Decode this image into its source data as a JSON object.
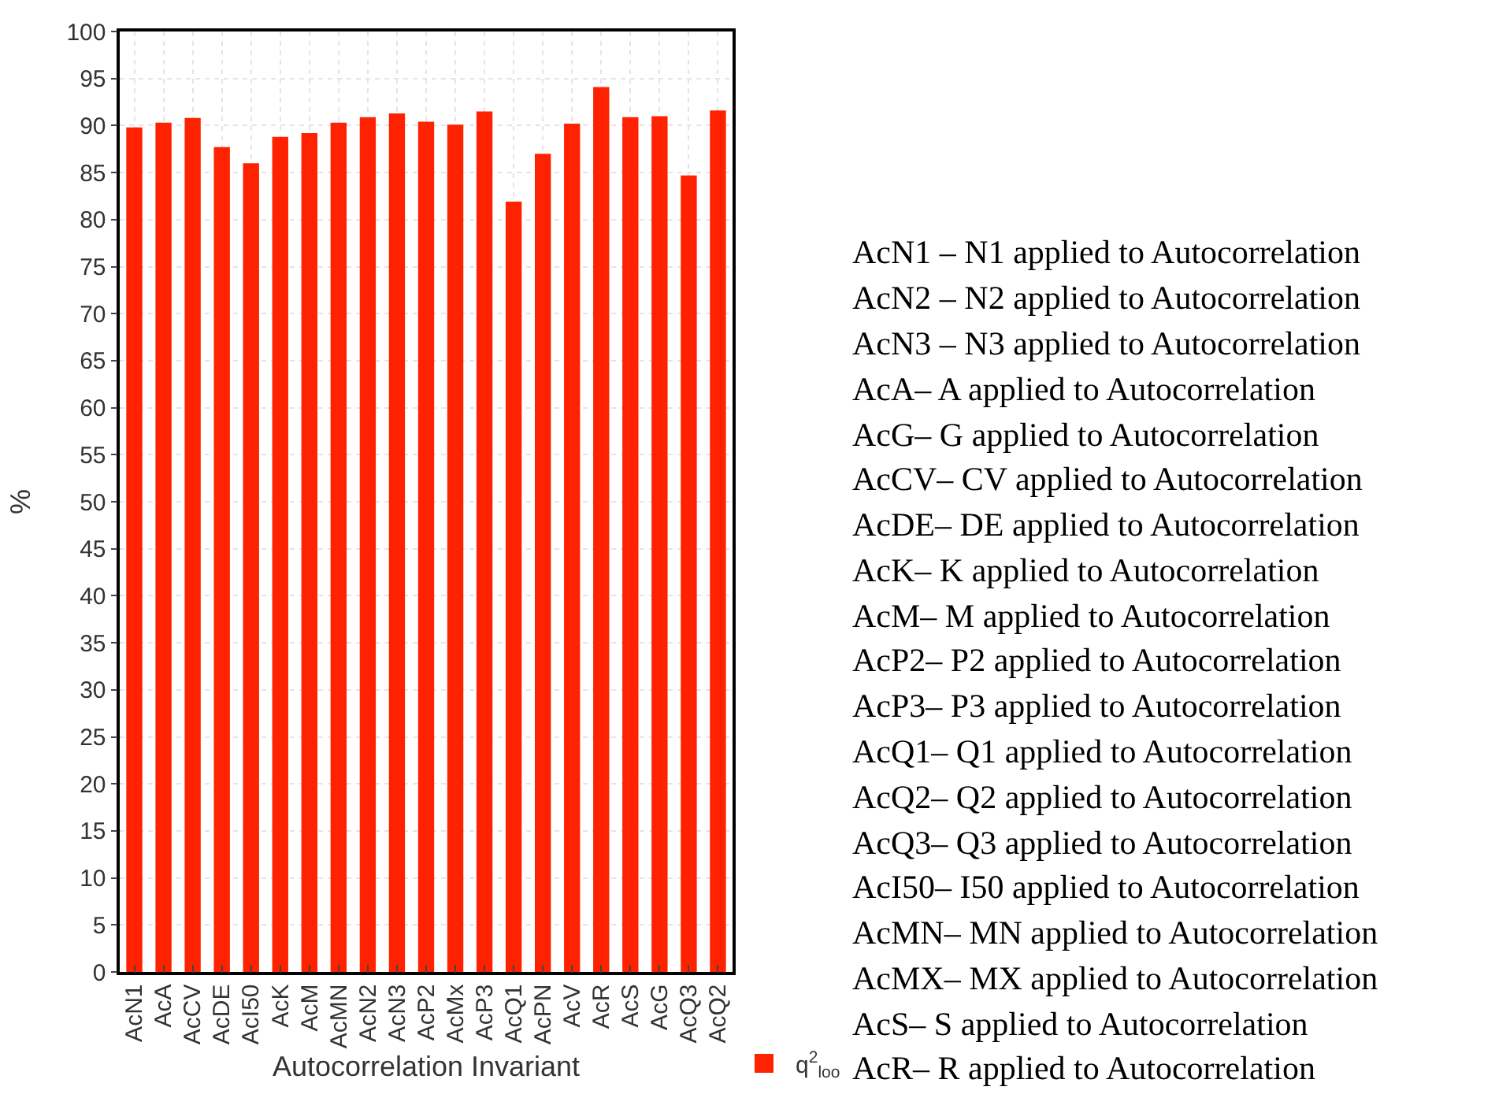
{
  "chart_data": {
    "type": "bar",
    "xlabel": "Autocorrelation Invariant",
    "ylabel": "%",
    "categories": [
      "AcN1",
      "AcA",
      "AcCV",
      "AcDE",
      "AcI50",
      "AcK",
      "AcM",
      "AcMN",
      "AcN2",
      "AcN3",
      "AcP2",
      "AcMx",
      "AcP3",
      "AcQ1",
      "AcPN",
      "AcV",
      "AcR",
      "AcS",
      "AcG",
      "AcQ3",
      "AcQ2"
    ],
    "series": [
      {
        "name": "q$^{2}$$_{loo}$",
        "color": "#ff2200",
        "values": [
          89.8,
          90.3,
          90.8,
          87.7,
          86.0,
          88.8,
          89.2,
          90.3,
          90.9,
          91.3,
          90.4,
          90.1,
          91.5,
          81.9,
          87.0,
          90.2,
          94.1,
          90.9,
          91.0,
          84.7,
          91.6
        ]
      }
    ],
    "ylim": [
      0,
      100
    ],
    "yticks": [
      0,
      5,
      10,
      15,
      20,
      25,
      30,
      35,
      40,
      45,
      50,
      55,
      60,
      65,
      70,
      75,
      80,
      85,
      90,
      95,
      100
    ],
    "grid": true,
    "legend": "bottom right",
    "annotations": [
      "AcN1 – N1 applied to Autocorrelation",
      "AcN2 – N2 applied to Autocorrelation",
      "AcN3 – N3 applied to Autocorrelation",
      "AcA– A applied to Autocorrelation",
      "AcG– G applied to Autocorrelation",
      "AcCV– CV applied to Autocorrelation",
      "AcDE– DE applied to Autocorrelation",
      "AcK– K applied to Autocorrelation",
      "AcM– M applied to Autocorrelation",
      "AcP2– P2 applied to Autocorrelation",
      "AcP3– P3 applied to Autocorrelation",
      "AcQ1– Q1 applied to Autocorrelation",
      "AcQ2– Q2 applied to Autocorrelation",
      "AcQ3– Q3 applied to Autocorrelation",
      "AcI50– I50 applied to Autocorrelation",
      "AcMN– MN applied to Autocorrelation",
      "AcMX– MX applied to Autocorrelation",
      "AcS– S applied to Autocorrelation",
      "AcR– R applied to Autocorrelation"
    ]
  }
}
